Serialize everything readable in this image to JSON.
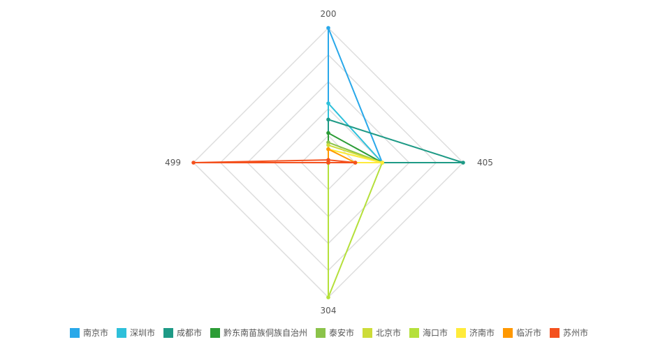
{
  "chart_data": {
    "type": "radar",
    "title": "",
    "indicators": [
      "200",
      "405",
      "304",
      "499"
    ],
    "max": 100,
    "levels": 5,
    "grid": true,
    "legend_position": "bottom",
    "series": [
      {
        "name": "南京市",
        "color": "#29A8E9",
        "values": [
          100,
          40,
          0,
          0
        ]
      },
      {
        "name": "深圳市",
        "color": "#2EC0DA",
        "values": [
          44,
          40,
          0,
          0
        ]
      },
      {
        "name": "成都市",
        "color": "#1E9A86",
        "values": [
          32,
          100,
          0,
          0
        ]
      },
      {
        "name": "黔东南苗族侗族自治州",
        "color": "#2C9C36",
        "values": [
          22,
          40,
          0,
          0
        ]
      },
      {
        "name": "泰安市",
        "color": "#8BC34A",
        "values": [
          15,
          40,
          0,
          0
        ]
      },
      {
        "name": "北京市",
        "color": "#CDDC39",
        "values": [
          13,
          40,
          0,
          0
        ]
      },
      {
        "name": "海口市",
        "color": "#B5E03B",
        "values": [
          10,
          40,
          100,
          0
        ]
      },
      {
        "name": "济南市",
        "color": "#FFEB3B",
        "values": [
          10,
          40,
          0,
          0
        ]
      },
      {
        "name": "临沂市",
        "color": "#FF9800",
        "values": [
          10,
          20,
          0,
          0
        ]
      },
      {
        "name": "苏州市",
        "color": "#F4511E",
        "values": [
          2,
          20,
          0,
          100
        ]
      }
    ]
  }
}
